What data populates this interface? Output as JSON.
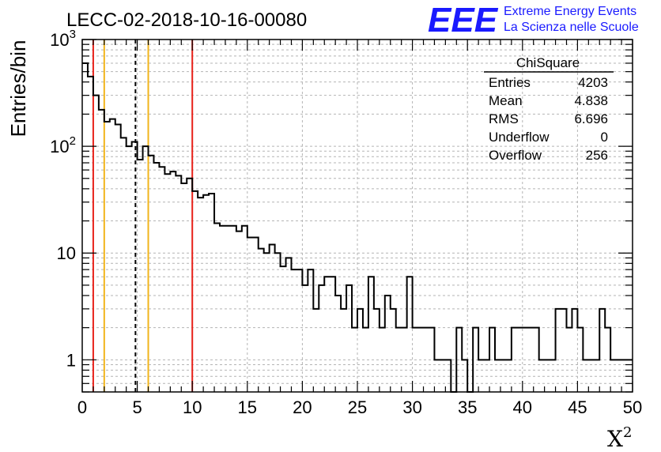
{
  "header": {
    "run_title": "LECC-02-2018-10-16-00080",
    "logo_text": "EEE",
    "logo_line1": "Extreme Energy Events",
    "logo_line2": "La Scienza nelle Scuole",
    "logo_color": "#1a1aff"
  },
  "stats": {
    "title": "ChiSquare",
    "rows": [
      {
        "label": "Entries",
        "value": "4203"
      },
      {
        "label": "Mean",
        "value": "4.838"
      },
      {
        "label": "RMS",
        "value": "6.696"
      },
      {
        "label": "Underflow",
        "value": "0"
      },
      {
        "label": "Overflow",
        "value": "256"
      }
    ]
  },
  "chart_data": {
    "type": "histogram",
    "title": "LECC-02-2018-10-16-00080",
    "xlabel": "X",
    "xlabel_superscript": "2",
    "ylabel": "Entries/bin",
    "xlim": [
      0,
      50
    ],
    "ylim": [
      0.5,
      1000
    ],
    "y_scale": "log",
    "grid": true,
    "bin_width": 0.5,
    "x_ticks": [
      "0",
      "5",
      "10",
      "15",
      "20",
      "25",
      "30",
      "35",
      "40",
      "45",
      "50"
    ],
    "y_ticks": [
      {
        "value": 1,
        "label": "1"
      },
      {
        "value": 10,
        "label": "10"
      },
      {
        "value": 100,
        "label": "10",
        "exp": "2"
      },
      {
        "value": 1000,
        "label": "10",
        "exp": "3"
      }
    ],
    "values": [
      600,
      450,
      300,
      220,
      170,
      180,
      160,
      120,
      100,
      110,
      75,
      100,
      82,
      70,
      64,
      55,
      58,
      53,
      45,
      50,
      38,
      33,
      35,
      36,
      19,
      18,
      18,
      18,
      16,
      18,
      14,
      14,
      11,
      10,
      12,
      10,
      7.5,
      9,
      7,
      7,
      5,
      7,
      3,
      5,
      6,
      6,
      4,
      3,
      5,
      2,
      3,
      2,
      6,
      3,
      2,
      4,
      3,
      2,
      2,
      6,
      2,
      2,
      2,
      2,
      1,
      1,
      1,
      0,
      2,
      1,
      0,
      2,
      1,
      1,
      2,
      1,
      1,
      1,
      2,
      2,
      2,
      2,
      2,
      1,
      1,
      1,
      3,
      3,
      2,
      3,
      2,
      1,
      1,
      1,
      3,
      2,
      1,
      1,
      1,
      1
    ],
    "reference_lines": [
      {
        "x": 1,
        "color": "#e8221a",
        "style": "solid"
      },
      {
        "x": 2,
        "color": "#f2b51c",
        "style": "solid"
      },
      {
        "x": 4.838,
        "color": "#000000",
        "style": "dashed"
      },
      {
        "x": 6,
        "color": "#f2b51c",
        "style": "solid"
      },
      {
        "x": 10,
        "color": "#e8221a",
        "style": "solid"
      }
    ]
  }
}
